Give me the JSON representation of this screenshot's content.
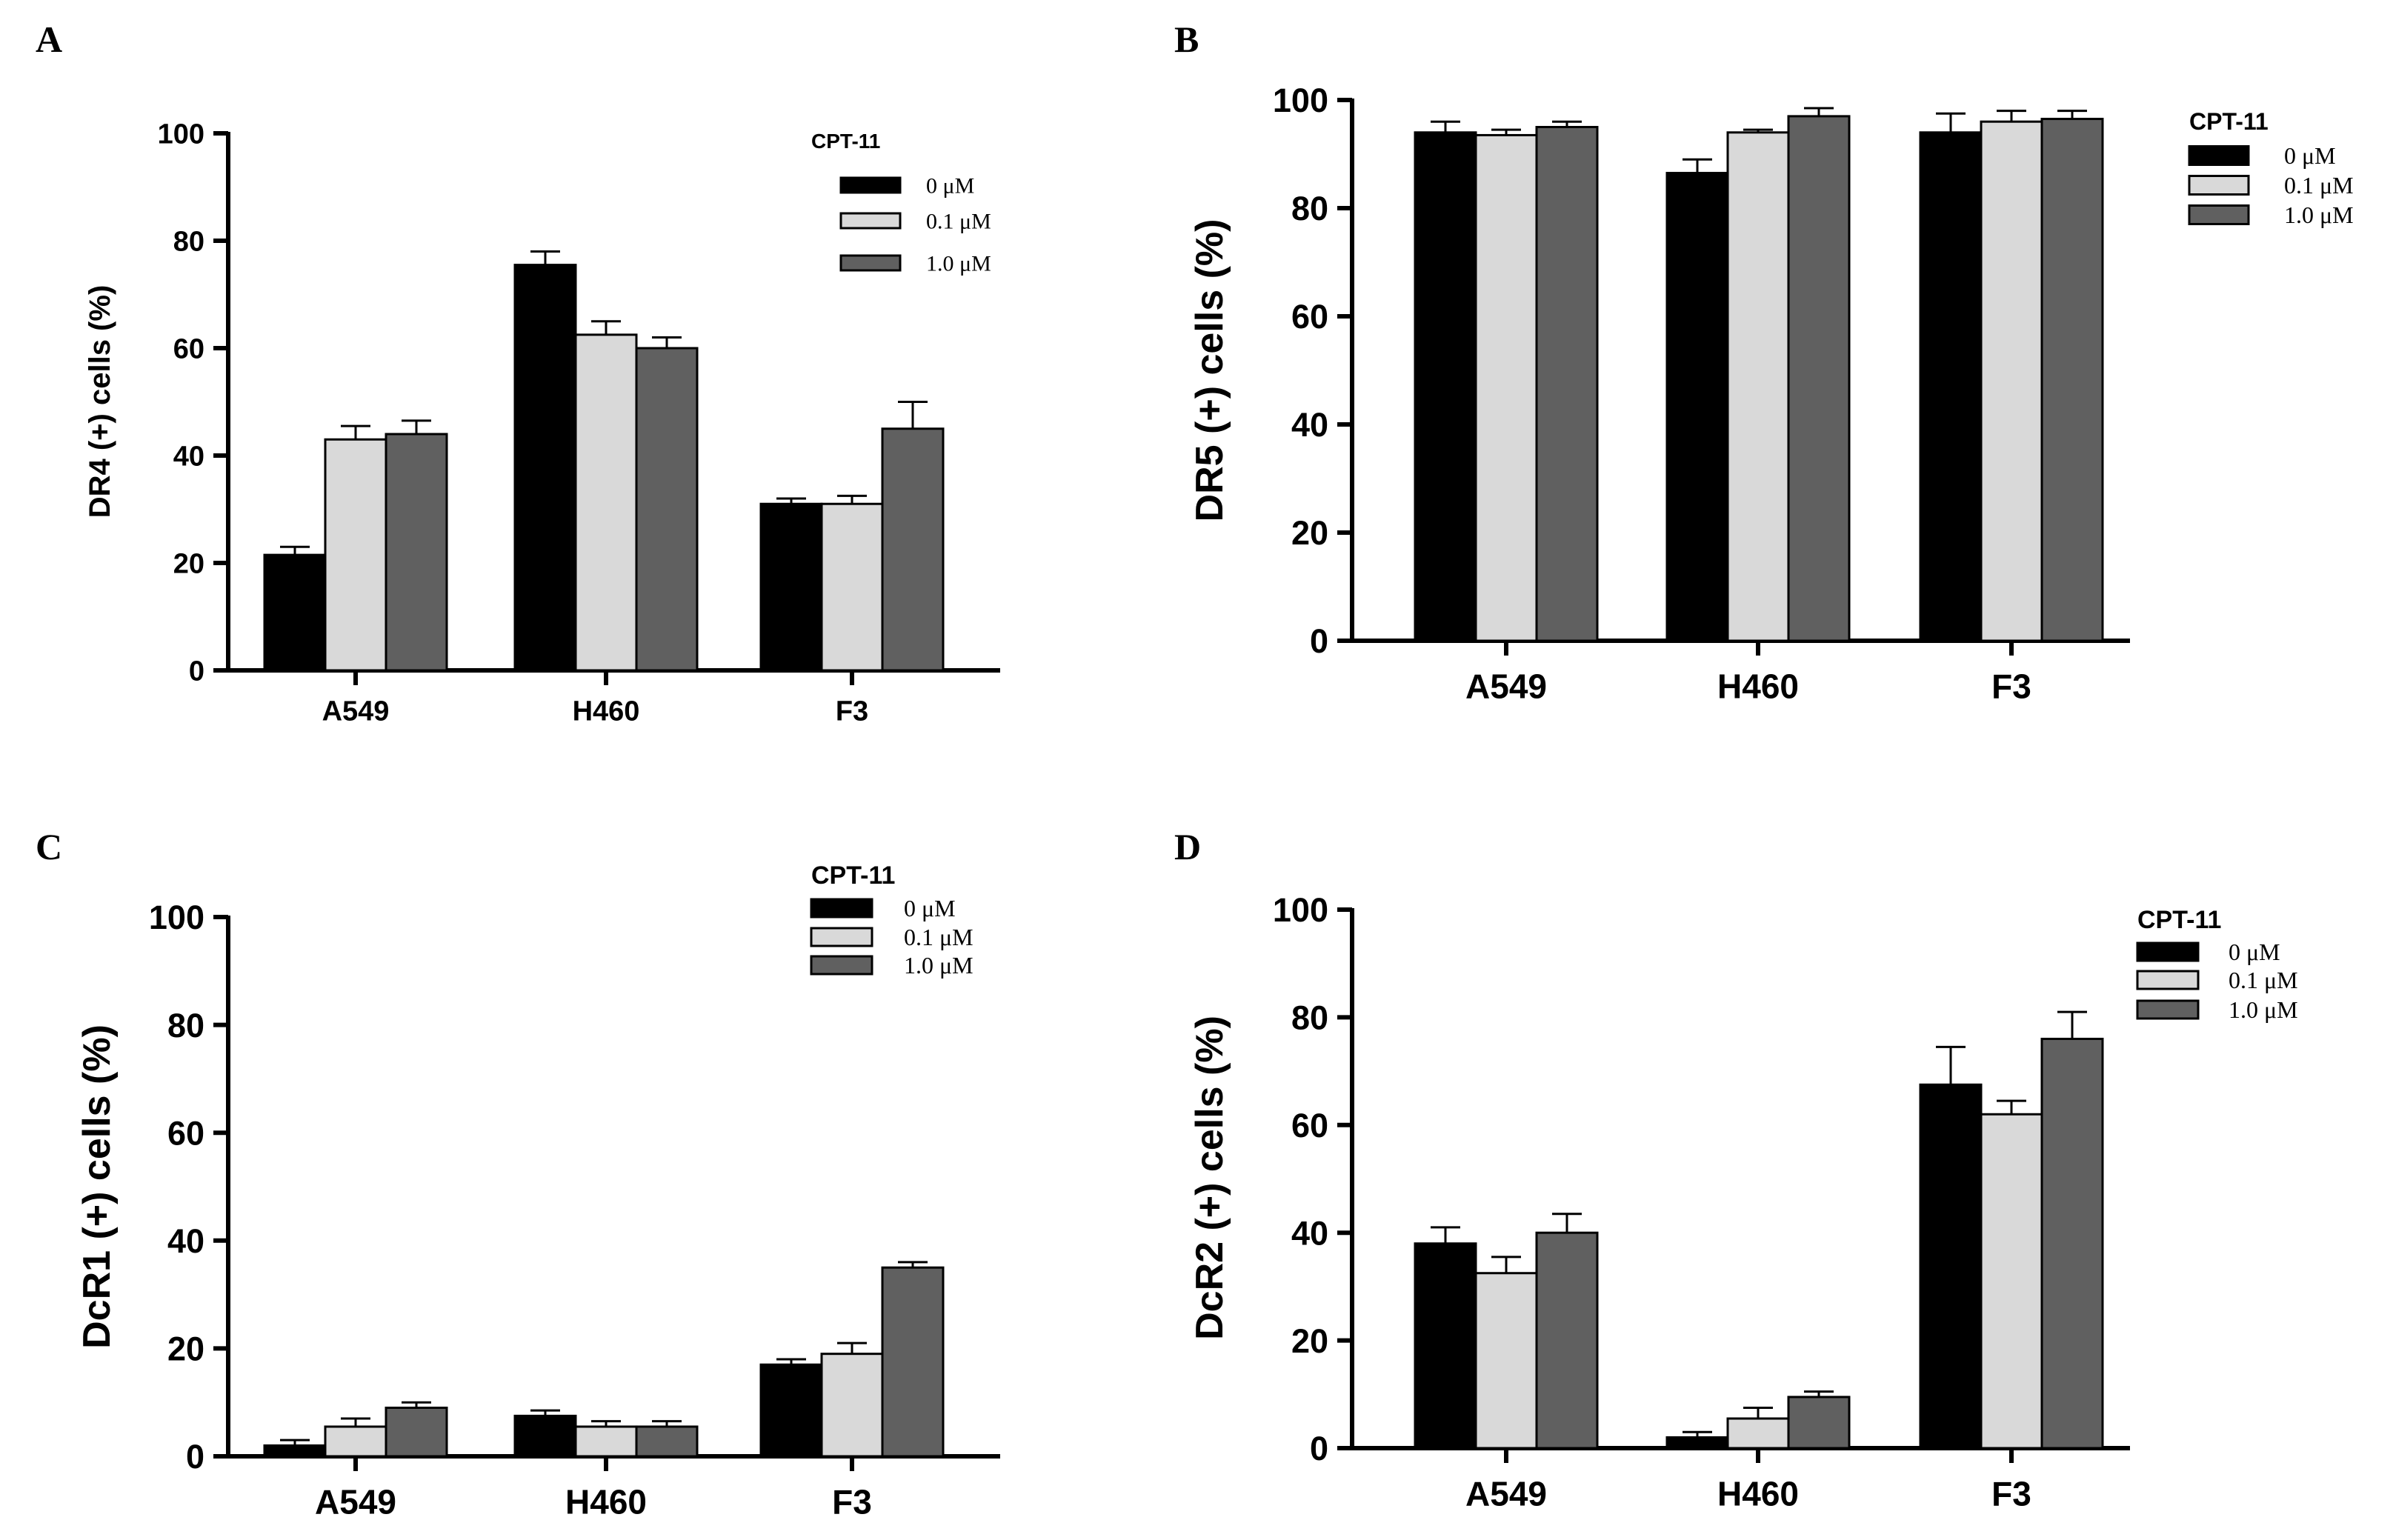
{
  "chart_data": [
    {
      "panel": "A",
      "type": "bar",
      "title": "",
      "ylabel": "DR4 (+) cells (%)",
      "xlabel": "",
      "ylim": [
        0,
        100
      ],
      "yticks": [
        "0",
        "20",
        "40",
        "60",
        "80",
        "100"
      ],
      "categories": [
        "A549",
        "H460",
        "F3"
      ],
      "legend_title": "CPT-11",
      "series": [
        {
          "name": "0 μM",
          "color": "#000000",
          "values": [
            21.5,
            75.5,
            31
          ],
          "errors": [
            1.5,
            2.5,
            1
          ]
        },
        {
          "name": "0.1 μM",
          "color": "#d9d9d9",
          "values": [
            43,
            62.5,
            31
          ],
          "errors": [
            2.5,
            2.5,
            1.5
          ]
        },
        {
          "name": "1.0 μM",
          "color": "#606060",
          "values": [
            44,
            60,
            45
          ],
          "errors": [
            2.5,
            2,
            5
          ]
        }
      ]
    },
    {
      "panel": "B",
      "type": "bar",
      "title": "",
      "ylabel": "DR5 (+) cells (%)",
      "xlabel": "",
      "ylim": [
        0,
        100
      ],
      "yticks": [
        "0",
        "20",
        "40",
        "60",
        "80",
        "100"
      ],
      "categories": [
        "A549",
        "H460",
        "F3"
      ],
      "legend_title": "CPT-11",
      "series": [
        {
          "name": "0 μM",
          "color": "#000000",
          "values": [
            94,
            86.5,
            94
          ],
          "errors": [
            2,
            2.5,
            3.5
          ]
        },
        {
          "name": "0.1 μM",
          "color": "#d9d9d9",
          "values": [
            93.5,
            94,
            96
          ],
          "errors": [
            1,
            0.5,
            2
          ]
        },
        {
          "name": "1.0 μM",
          "color": "#606060",
          "values": [
            95,
            97,
            96.5
          ],
          "errors": [
            1,
            1.5,
            1.5
          ]
        }
      ]
    },
    {
      "panel": "C",
      "type": "bar",
      "title": "",
      "ylabel": "DcR1 (+) cells (%)",
      "xlabel": "",
      "ylim": [
        0,
        100
      ],
      "yticks": [
        "0",
        "20",
        "40",
        "60",
        "80",
        "100"
      ],
      "categories": [
        "A549",
        "H460",
        "F3"
      ],
      "legend_title": "CPT-11",
      "series": [
        {
          "name": "0 μM",
          "color": "#000000",
          "values": [
            2,
            7.5,
            17
          ],
          "errors": [
            1,
            1,
            1
          ]
        },
        {
          "name": "0.1 μM",
          "color": "#d9d9d9",
          "values": [
            5.5,
            5.5,
            19
          ],
          "errors": [
            1.5,
            1,
            2
          ]
        },
        {
          "name": "1.0 μM",
          "color": "#606060",
          "values": [
            9,
            5.5,
            35
          ],
          "errors": [
            1,
            1,
            1
          ]
        }
      ]
    },
    {
      "panel": "D",
      "type": "bar",
      "title": "",
      "ylabel": "DcR2 (+) cells (%)",
      "xlabel": "",
      "ylim": [
        0,
        100
      ],
      "yticks": [
        "0",
        "20",
        "40",
        "60",
        "80",
        "100"
      ],
      "categories": [
        "A549",
        "H460",
        "F3"
      ],
      "legend_title": "CPT-11",
      "series": [
        {
          "name": "0 μM",
          "color": "#000000",
          "values": [
            38,
            2,
            67.5
          ],
          "errors": [
            3,
            1,
            7
          ]
        },
        {
          "name": "0.1 μM",
          "color": "#d9d9d9",
          "values": [
            32.5,
            5.5,
            62
          ],
          "errors": [
            3,
            2,
            2.5
          ]
        },
        {
          "name": "1.0 μM",
          "color": "#606060",
          "values": [
            40,
            9.5,
            76
          ],
          "errors": [
            3.5,
            1,
            5
          ]
        }
      ]
    }
  ]
}
